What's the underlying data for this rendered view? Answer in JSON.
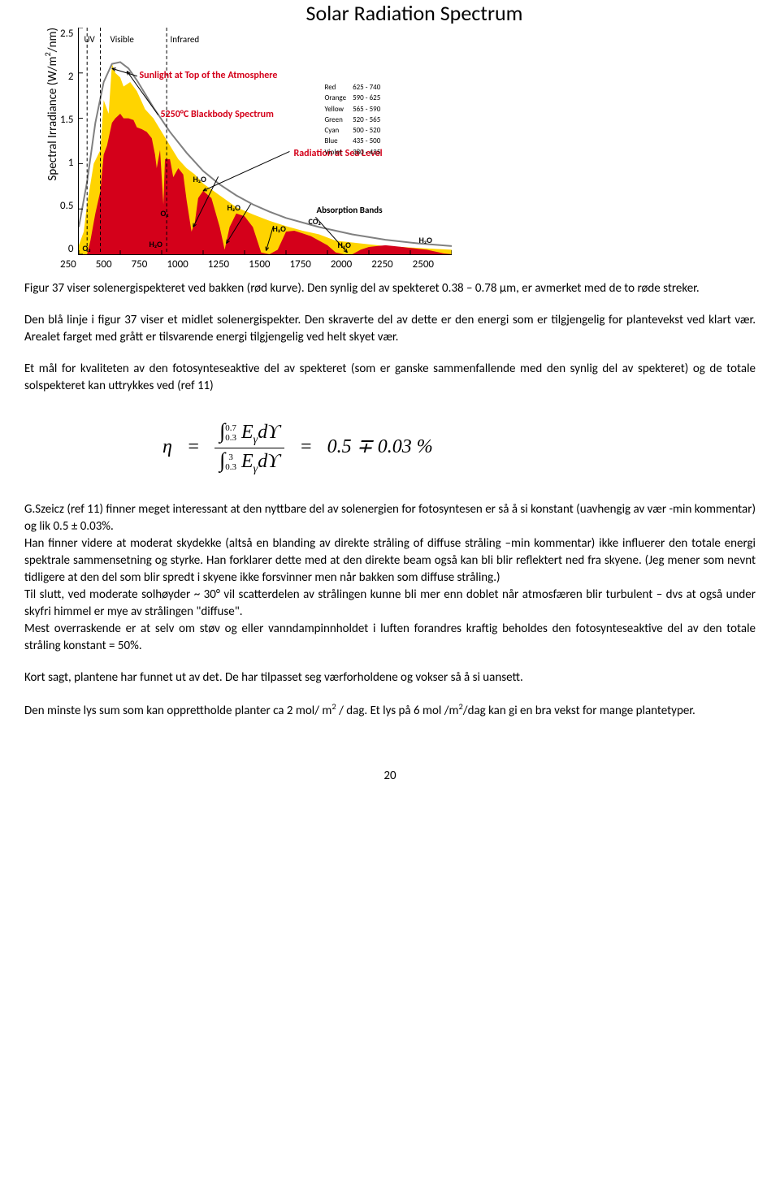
{
  "chart": {
    "title": "Solar Radiation Spectrum",
    "ylabel_html": "Spectral Irradiance (W/m<span class='super'>2</span>/nm)",
    "annotations": {
      "uv": "UV",
      "visible": "Visible",
      "infrared": "Infrared",
      "top_atm": "Sunlight at Top of the Atmosphere",
      "blackbody": "5250°C Blackbody Spectrum",
      "sealevel": "Radiation at Sea Level",
      "absorption": "Absorption Bands"
    },
    "molecules": {
      "o3": "O₃",
      "o2": "O₂",
      "h2o_1": "H₂O",
      "h2o_2": "H₂O",
      "h2o_3": "H₂O",
      "h2o_4": "H₂O",
      "h2o_5": "H₂O",
      "h2o_6": "H₂O",
      "co2": "CO₂"
    },
    "color_table": [
      [
        "Red",
        "625 - 740"
      ],
      [
        "Orange",
        "590 - 625"
      ],
      [
        "Yellow",
        "565 - 590"
      ],
      [
        "Green",
        "520 - 565"
      ],
      [
        "Cyan",
        "500 - 520"
      ],
      [
        "Blue",
        "435 - 500"
      ],
      [
        "Violet",
        "380 - 435"
      ]
    ],
    "yticks": [
      "2.5",
      "2",
      "1.5",
      "1",
      "0.5",
      "0"
    ],
    "xticks": [
      "250",
      "500",
      "750",
      "1000",
      "1250",
      "1500",
      "1750",
      "2000",
      "2250",
      "2500"
    ],
    "ylim": [
      0,
      2.5
    ],
    "xlim": [
      250,
      2500
    ],
    "colors": {
      "yellow_fill": "#ffd400",
      "red_fill": "#d4001a",
      "blackbody_line": "#808080",
      "axis": "#000000",
      "anno_red": "#d4001a",
      "dashed": "#000000",
      "background": "#ffffff"
    },
    "line_width_blackbody": 2,
    "series": {
      "top_atmosphere": [
        [
          250,
          0.1
        ],
        [
          280,
          0.25
        ],
        [
          300,
          0.55
        ],
        [
          340,
          1.0
        ],
        [
          380,
          1.15
        ],
        [
          400,
          1.7
        ],
        [
          430,
          1.55
        ],
        [
          450,
          2.1
        ],
        [
          470,
          2.0
        ],
        [
          500,
          1.95
        ],
        [
          520,
          1.85
        ],
        [
          560,
          1.9
        ],
        [
          600,
          1.8
        ],
        [
          650,
          1.6
        ],
        [
          700,
          1.5
        ],
        [
          750,
          1.35
        ],
        [
          800,
          1.2
        ],
        [
          850,
          1.05
        ],
        [
          900,
          0.95
        ],
        [
          950,
          0.88
        ],
        [
          1000,
          0.78
        ],
        [
          1100,
          0.65
        ],
        [
          1200,
          0.52
        ],
        [
          1300,
          0.44
        ],
        [
          1400,
          0.37
        ],
        [
          1500,
          0.31
        ],
        [
          1600,
          0.26
        ],
        [
          1700,
          0.22
        ],
        [
          1800,
          0.15
        ],
        [
          1900,
          0.13
        ],
        [
          2000,
          0.11
        ],
        [
          2100,
          0.09
        ],
        [
          2200,
          0.08
        ],
        [
          2300,
          0.07
        ],
        [
          2400,
          0.06
        ],
        [
          2500,
          0.05
        ]
      ],
      "sea_level": [
        [
          300,
          0.0
        ],
        [
          320,
          0.15
        ],
        [
          350,
          0.45
        ],
        [
          380,
          0.7
        ],
        [
          400,
          1.1
        ],
        [
          420,
          1.2
        ],
        [
          450,
          1.45
        ],
        [
          470,
          1.5
        ],
        [
          500,
          1.55
        ],
        [
          520,
          1.5
        ],
        [
          550,
          1.5
        ],
        [
          580,
          1.48
        ],
        [
          600,
          1.4
        ],
        [
          630,
          1.38
        ],
        [
          660,
          1.35
        ],
        [
          690,
          1.28
        ],
        [
          710,
          1.1
        ],
        [
          720,
          0.95
        ],
        [
          740,
          1.15
        ],
        [
          760,
          0.55
        ],
        [
          770,
          1.05
        ],
        [
          800,
          1.05
        ],
        [
          820,
          0.85
        ],
        [
          850,
          0.95
        ],
        [
          880,
          0.88
        ],
        [
          900,
          0.6
        ],
        [
          930,
          0.25
        ],
        [
          950,
          0.35
        ],
        [
          970,
          0.62
        ],
        [
          1000,
          0.7
        ],
        [
          1050,
          0.62
        ],
        [
          1100,
          0.3
        ],
        [
          1130,
          0.05
        ],
        [
          1160,
          0.3
        ],
        [
          1200,
          0.45
        ],
        [
          1250,
          0.42
        ],
        [
          1300,
          0.3
        ],
        [
          1350,
          0.02
        ],
        [
          1400,
          0.0
        ],
        [
          1450,
          0.05
        ],
        [
          1500,
          0.25
        ],
        [
          1550,
          0.26
        ],
        [
          1600,
          0.23
        ],
        [
          1650,
          0.2
        ],
        [
          1700,
          0.15
        ],
        [
          1750,
          0.1
        ],
        [
          1800,
          0.02
        ],
        [
          1850,
          0.0
        ],
        [
          1900,
          0.0
        ],
        [
          1950,
          0.05
        ],
        [
          2000,
          0.08
        ],
        [
          2050,
          0.09
        ],
        [
          2100,
          0.1
        ],
        [
          2150,
          0.09
        ],
        [
          2200,
          0.08
        ],
        [
          2250,
          0.07
        ],
        [
          2300,
          0.06
        ],
        [
          2350,
          0.05
        ],
        [
          2400,
          0.03
        ],
        [
          2450,
          0.01
        ],
        [
          2500,
          0.0
        ]
      ],
      "blackbody": [
        [
          250,
          0.3
        ],
        [
          300,
          0.8
        ],
        [
          350,
          1.45
        ],
        [
          400,
          1.9
        ],
        [
          450,
          2.1
        ],
        [
          500,
          2.12
        ],
        [
          550,
          2.05
        ],
        [
          600,
          1.92
        ],
        [
          700,
          1.62
        ],
        [
          800,
          1.35
        ],
        [
          900,
          1.12
        ],
        [
          1000,
          0.92
        ],
        [
          1100,
          0.77
        ],
        [
          1200,
          0.65
        ],
        [
          1300,
          0.55
        ],
        [
          1400,
          0.47
        ],
        [
          1500,
          0.4
        ],
        [
          1700,
          0.3
        ],
        [
          1900,
          0.22
        ],
        [
          2100,
          0.16
        ],
        [
          2300,
          0.12
        ],
        [
          2500,
          0.09
        ]
      ]
    }
  },
  "caption": "Figur 37 viser solenergispekteret ved bakken (rød kurve). Den synlig del av spekteret 0.38 – 0.78 μm, er avmerket med de to røde streker.",
  "para1": "Den blå linje i figur 37 viser et midlet solenergispekter. Den skraverte del av dette er den energi som er tilgjengelig for plantevekst ved klart vær. Arealet farget med grått er tilsvarende energi tilgjengelig ved helt skyet vær.",
  "para2": "Et mål for kvaliteten av den fotosynteseaktive del av spekteret (som er ganske  sammenfallende med den synlig del av spekteret)  og de totale solspekteret kan uttrykkes ved (ref 11)",
  "formula": {
    "eta": "η",
    "int_num_lo": "0.3",
    "int_num_hi": "0.7",
    "int_den_lo": "0.3",
    "int_den_hi": "3",
    "integrand": "E",
    "integrand_sub": "γ",
    "dvar": "dϒ",
    "result": "0.5 ∓ 0.03 %"
  },
  "para3_html": "G.Szeicz (ref 11) finner meget interessant at den nyttbare del av solenergien for fotosyntesen er så å si konstant (uavhengig av vær -min kommentar)  og lik 0.5 ± 0.03%.<br>Han finner videre at moderat skydekke (altså en blanding av direkte stråling of diffuse stråling –min kommentar) ikke influerer den totale energi spektrale sammensetning og styrke. Han forklarer dette med at den direkte beam også kan bli blir reflektert ned fra skyene. (Jeg mener som nevnt tidligere at den del som blir spredt i skyene ikke forsvinner men når bakken som diffuse stråling.)<br>Til slutt, ved moderate solhøyder ~ 30° vil scatterdelen av strålingen kunne bli mer enn doblet når atmosfæren blir turbulent – dvs at også under skyfri himmel er mye av strålingen \"diffuse\".<br>Mest overraskende er at selv om støv og eller vanndampinnholdet i luften forandres kraftig beholdes den fotosynteseaktive del av den totale stråling konstant = 50%.",
  "para4": "Kort sagt, plantene har funnet ut av det. De har tilpasset seg værforholdene og vokser så å si uansett.",
  "para5_html": "Den minste lys sum som kan opprettholde planter ca 2 mol/ m<span class='super'>2</span> / dag.  Et lys på 6 mol /m<span class='super'>2</span>/dag kan gi en bra vekst for mange plantetyper.",
  "pagenum": "20"
}
